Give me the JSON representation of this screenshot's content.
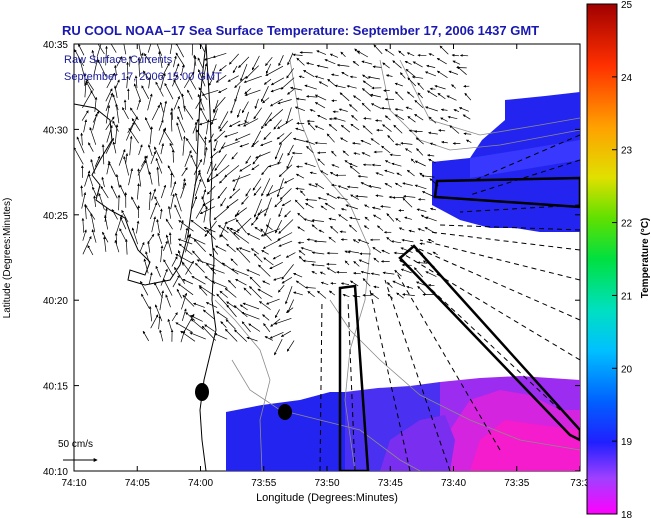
{
  "title": "RU COOL  NOAA–17  Sea Surface Temperature:  September 17, 2006 1437 GMT",
  "subtitle_line1": "Raw Surface Currents",
  "subtitle_line2": "September 17, 2006 15:00 GMT",
  "xlabel": "Longitude (Degrees:Minutes)",
  "ylabel": "Latitude (Degrees:Minutes)",
  "x_ticks": [
    "74:10",
    "74:05",
    "74:00",
    "73:55",
    "73:50",
    "73:45",
    "73:40",
    "73:35",
    "73:3"
  ],
  "y_ticks": [
    "40:35",
    "40:30",
    "40:25",
    "40:20",
    "40:15",
    "40:10"
  ],
  "scale_label": "50 cm/s",
  "colorbar": {
    "label": "Temperature (°C)",
    "ticks": [
      "25",
      "24",
      "23",
      "22",
      "21",
      "20",
      "19",
      "18"
    ]
  },
  "colors": {
    "title": "#1818b0",
    "subtitle": "#18189a",
    "warm_pink": "#f020d0",
    "purple": "#9a30f0",
    "blue": "#2020f0"
  }
}
